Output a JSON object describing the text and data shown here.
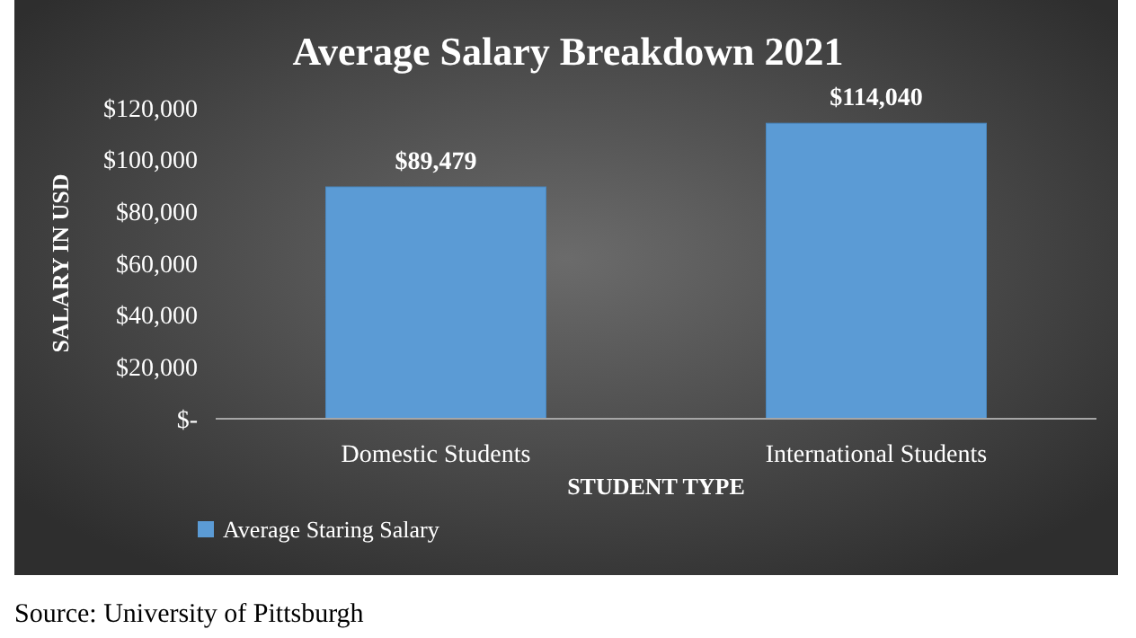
{
  "chart_data": {
    "type": "bar",
    "title": "Average Salary Breakdown 2021",
    "xlabel": "STUDENT TYPE",
    "ylabel": "SALARY IN USD",
    "categories": [
      "Domestic Students",
      "International Students"
    ],
    "series": [
      {
        "name": "Average Staring Salary",
        "color": "#5b9bd5",
        "values": [
          89479,
          114040
        ],
        "value_labels": [
          "$89,479",
          "$114,040"
        ]
      }
    ],
    "ylim": [
      0,
      120000
    ],
    "yticks": [
      {
        "value": 0,
        "label": "$-"
      },
      {
        "value": 20000,
        "label": "$20,000"
      },
      {
        "value": 40000,
        "label": "$40,000"
      },
      {
        "value": 60000,
        "label": "$60,000"
      },
      {
        "value": 80000,
        "label": "$80,000"
      },
      {
        "value": 100000,
        "label": "$100,000"
      },
      {
        "value": 120000,
        "label": "$120,000"
      }
    ],
    "grid": false,
    "legend": "bottom left",
    "annotations": [
      "Source: University of Pittsburgh"
    ]
  }
}
